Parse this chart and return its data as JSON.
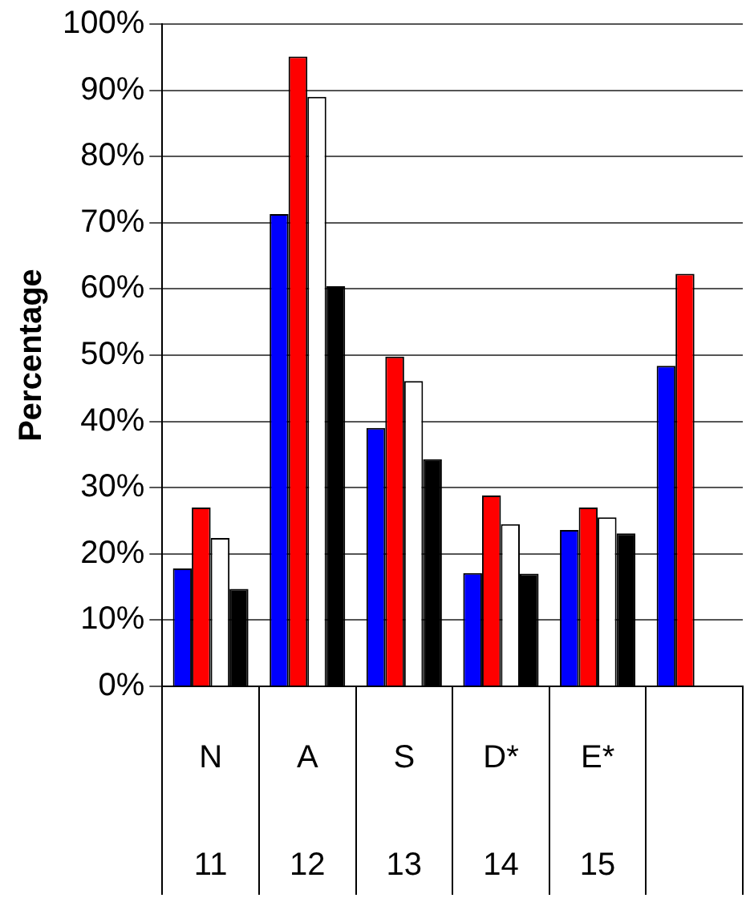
{
  "chart_data": {
    "type": "bar",
    "ylabel": "Percentage",
    "categories": [
      "N\n11",
      "A\n12",
      "S\n13",
      "D*\n14",
      "E*\n15",
      null
    ],
    "series": [
      {
        "color": "#0000ff",
        "values": [
          17.8,
          71.3,
          39.0,
          17.1,
          23.6,
          48.4
        ]
      },
      {
        "color": "#ff0000",
        "values": [
          27.0,
          95.1,
          49.8,
          28.8,
          27.0,
          62.3
        ]
      },
      {
        "color": "#ffffff",
        "values": [
          22.4,
          89.0,
          46.1,
          24.5,
          25.5,
          null
        ]
      },
      {
        "color": "#000000",
        "values": [
          14.7,
          60.4,
          34.3,
          17.0,
          23.1,
          null
        ]
      }
    ],
    "ylim": [
      0,
      100
    ],
    "yticks": [
      {
        "value": 0,
        "label": "0%"
      },
      {
        "value": 10,
        "label": "10%"
      },
      {
        "value": 20,
        "label": "20%"
      },
      {
        "value": 30,
        "label": "30%"
      },
      {
        "value": 40,
        "label": "40%"
      },
      {
        "value": 50,
        "label": "50%"
      },
      {
        "value": 60,
        "label": "60%"
      },
      {
        "value": 70,
        "label": "70%"
      },
      {
        "value": 80,
        "label": "80%"
      },
      {
        "value": 90,
        "label": "90%"
      },
      {
        "value": 100,
        "label": "100%"
      }
    ],
    "grid": "y",
    "legend": false
  }
}
